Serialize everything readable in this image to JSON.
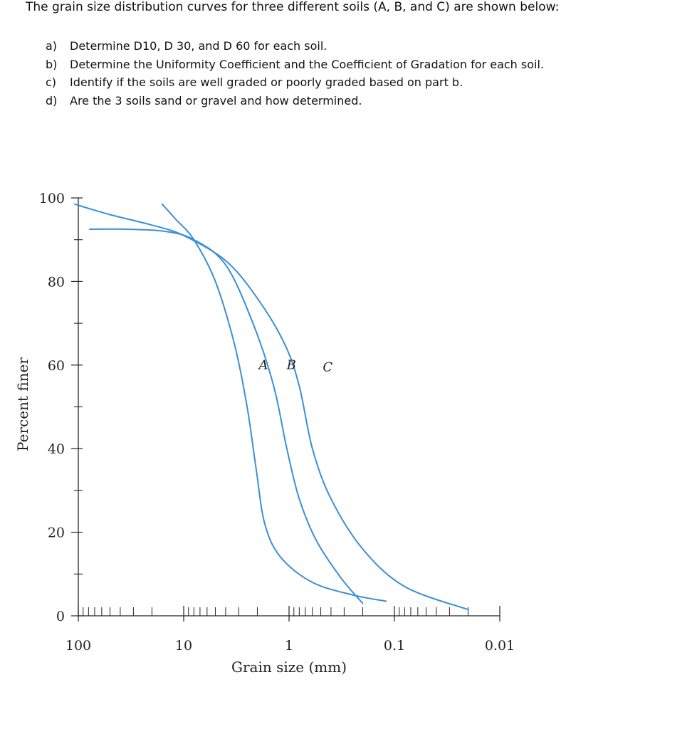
{
  "problem": {
    "title": "The grain size distribution curves for three different soils (A, B, and C) are shown below:",
    "questions": [
      {
        "letter": "a)",
        "text": "Determine D10, D 30, and D 60 for each soil."
      },
      {
        "letter": "b)",
        "text": "Determine the Uniformity Coefficient and the Coefficient of Gradation for each soil."
      },
      {
        "letter": "c)",
        "text": "Identify if the soils are well graded or poorly graded based on part b."
      },
      {
        "letter": "d)",
        "text": "Are the 3 soils sand or gravel and how determined."
      }
    ]
  },
  "chart_data": {
    "type": "line",
    "xlabel": "Grain size (mm)",
    "ylabel": "Percent finer",
    "x_scale": "log",
    "x_reversed": true,
    "xlim": [
      100,
      0.01
    ],
    "ylim": [
      0,
      100
    ],
    "x_ticks": [
      {
        "value": 100,
        "label": "100"
      },
      {
        "value": 10,
        "label": "10"
      },
      {
        "value": 1,
        "label": "1"
      },
      {
        "value": 0.1,
        "label": "0.1"
      },
      {
        "value": 0.01,
        "label": "0.01"
      }
    ],
    "y_ticks": [
      {
        "value": 0,
        "label": "0"
      },
      {
        "value": 20,
        "label": "20"
      },
      {
        "value": 40,
        "label": "40"
      },
      {
        "value": 60,
        "label": "60"
      },
      {
        "value": 80,
        "label": "80"
      },
      {
        "value": 100,
        "label": "100"
      }
    ],
    "line_color": "#3b8fd6",
    "series": [
      {
        "name": "A",
        "label_at": {
          "x": 1.75,
          "y": 59
        },
        "points": [
          [
            16,
            98.5
          ],
          [
            12,
            95
          ],
          [
            8,
            90
          ],
          [
            5,
            80
          ],
          [
            3.3,
            65
          ],
          [
            2.5,
            50
          ],
          [
            2.05,
            35
          ],
          [
            1.7,
            22
          ],
          [
            1.2,
            14
          ],
          [
            0.6,
            8
          ],
          [
            0.25,
            5
          ],
          [
            0.12,
            3.5
          ]
        ]
      },
      {
        "name": "B",
        "label_at": {
          "x": 0.95,
          "y": 59
        },
        "points": [
          [
            78,
            92.5
          ],
          [
            35,
            92.5
          ],
          [
            15,
            92
          ],
          [
            8,
            90
          ],
          [
            4,
            84
          ],
          [
            2.2,
            70
          ],
          [
            1.4,
            55
          ],
          [
            1.05,
            40
          ],
          [
            0.8,
            28
          ],
          [
            0.55,
            18
          ],
          [
            0.32,
            9
          ],
          [
            0.2,
            3
          ]
        ]
      },
      {
        "name": "C",
        "label_at": {
          "x": 0.43,
          "y": 58.5
        },
        "points": [
          [
            108,
            98.5
          ],
          [
            50,
            96
          ],
          [
            20,
            93.5
          ],
          [
            10,
            91
          ],
          [
            4,
            85
          ],
          [
            2,
            76
          ],
          [
            1.1,
            65
          ],
          [
            0.8,
            55
          ],
          [
            0.6,
            40
          ],
          [
            0.4,
            28
          ],
          [
            0.2,
            16
          ],
          [
            0.08,
            7
          ],
          [
            0.02,
            1.5
          ]
        ]
      }
    ],
    "annotations": []
  }
}
